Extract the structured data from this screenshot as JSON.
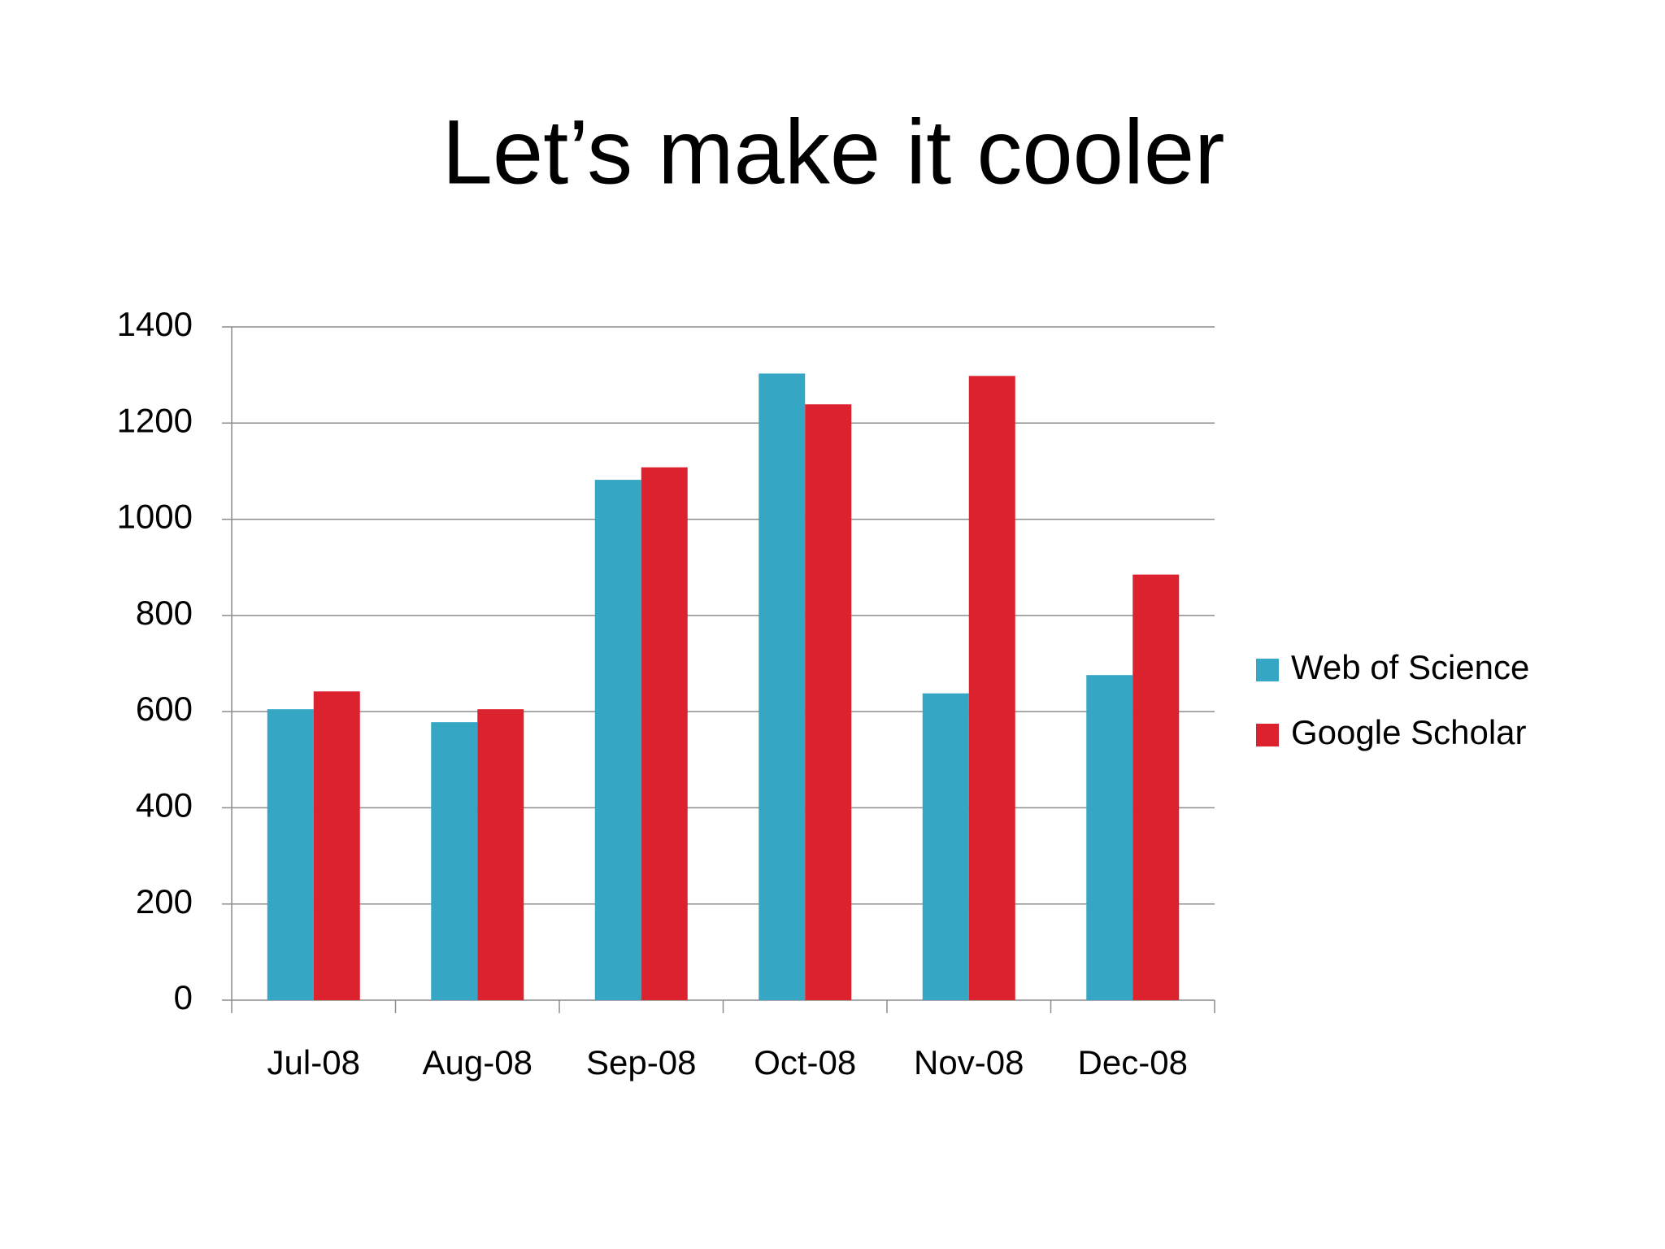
{
  "chart_data": {
    "type": "bar",
    "title": "Let’s make it cooler",
    "categories": [
      "Jul-08",
      "Aug-08",
      "Sep-08",
      "Oct-08",
      "Nov-08",
      "Dec-08"
    ],
    "series": [
      {
        "name": "Web of Science",
        "color": "#35a7c4",
        "values": [
          605,
          578,
          1082,
          1303,
          638,
          676
        ]
      },
      {
        "name": "Google Scholar",
        "color": "#dc222f",
        "values": [
          642,
          605,
          1108,
          1239,
          1298,
          885
        ]
      }
    ],
    "ylim": [
      0,
      1400
    ],
    "yticks": [
      0,
      200,
      400,
      600,
      800,
      1000,
      1200,
      1400
    ],
    "grid": true,
    "legend": "right"
  }
}
